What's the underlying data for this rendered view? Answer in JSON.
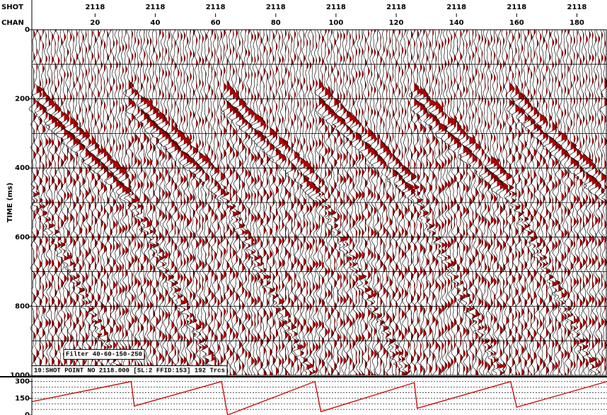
{
  "chart_data": [
    {
      "type": "seismic",
      "header_shot": "SHOT",
      "header_chan": "CHAN",
      "xlim": [
        -1,
        190
      ],
      "xticks": [
        20,
        40,
        60,
        80,
        100,
        120,
        140,
        160,
        180
      ],
      "shot_numbers": [
        "2118",
        "2118",
        "2118",
        "2118",
        "2118",
        "2118",
        "2118",
        "2118",
        "2118"
      ],
      "y_label": "TIME (ms)",
      "ylim": [
        0,
        1000
      ],
      "yticks": [
        0,
        200,
        400,
        600,
        800,
        1000
      ],
      "ygrid": [
        100,
        200,
        300,
        400,
        500,
        600,
        700,
        800,
        900
      ],
      "trace_color": "#000000",
      "fill_color": "#b00000",
      "annotations": [
        "Filter 40-60-150-250",
        "19:SHOT POINT NO 2118.000 [SL:2 FFID:153] 192 Trcs"
      ]
    },
    {
      "type": "line",
      "xlim": [
        -1,
        190
      ],
      "x": [
        -1,
        32,
        33,
        62,
        64,
        93,
        95,
        126,
        127,
        158,
        160,
        190
      ],
      "values": [
        120,
        300,
        80,
        300,
        0,
        300,
        30,
        290,
        60,
        300,
        70,
        300
      ],
      "color": "#cc0000",
      "ylim": [
        0,
        330
      ],
      "yticks": [
        0,
        150,
        300
      ],
      "ygrid": [
        50,
        100,
        150,
        200,
        250,
        300
      ]
    }
  ]
}
